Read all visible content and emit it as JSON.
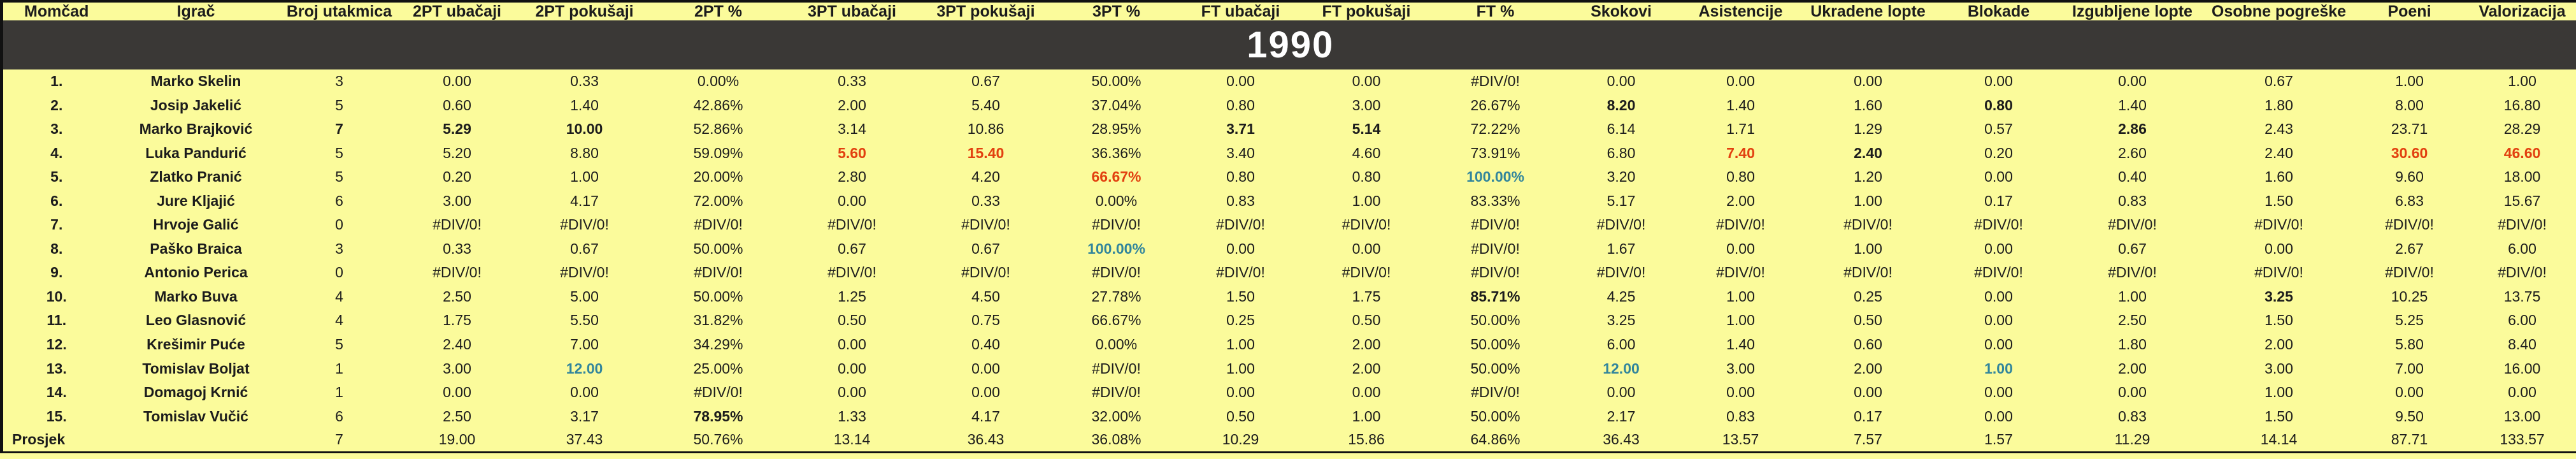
{
  "banner": {
    "year": "1990"
  },
  "colors": {
    "background": "#fbfb9b",
    "text": "#1c1c1c",
    "banner_bg": "#3a3836",
    "banner_text": "#ffffff",
    "max_red": "#e2400f",
    "max_teal": "#31859c"
  },
  "table": {
    "columns": [
      "Momčad",
      "Igrač",
      "Broj utakmica",
      "2PT ubačaji",
      "2PT pokušaji",
      "2PT %",
      "3PT ubačaji",
      "3PT pokušaji",
      "3PT %",
      "FT ubačaji",
      "FT pokušaji",
      "FT %",
      "Skokovi",
      "Asistencije",
      "Ukradene lopte",
      "Blokade",
      "Izgubljene lopte",
      "Osobne pogreške",
      "Poeni",
      "Valorizacija"
    ],
    "rows": [
      {
        "cells": [
          "1.",
          "Marko Skelin",
          "3",
          "0.00",
          "0.33",
          "0.00%",
          "0.33",
          "0.67",
          "50.00%",
          "0.00",
          "0.00",
          "#DIV/0!",
          "0.00",
          "0.00",
          "0.00",
          "0.00",
          "0.00",
          "0.67",
          "1.00",
          "1.00"
        ],
        "styles": {}
      },
      {
        "cells": [
          "2.",
          "Josip Jakelić",
          "5",
          "0.60",
          "1.40",
          "42.86%",
          "2.00",
          "5.40",
          "37.04%",
          "0.80",
          "3.00",
          "26.67%",
          "8.20",
          "1.40",
          "1.60",
          "0.80",
          "1.40",
          "1.80",
          "8.00",
          "16.80"
        ],
        "styles": {
          "12": "bold",
          "15": "bold"
        }
      },
      {
        "cells": [
          "3.",
          "Marko Brajković",
          "7",
          "5.29",
          "10.00",
          "52.86%",
          "3.14",
          "10.86",
          "28.95%",
          "3.71",
          "5.14",
          "72.22%",
          "6.14",
          "1.71",
          "1.29",
          "0.57",
          "2.86",
          "2.43",
          "23.71",
          "28.29"
        ],
        "styles": {
          "2": "bold",
          "3": "bold",
          "4": "bold",
          "9": "bold",
          "10": "bold",
          "16": "bold"
        }
      },
      {
        "cells": [
          "4.",
          "Luka Pandurić",
          "5",
          "5.20",
          "8.80",
          "59.09%",
          "5.60",
          "15.40",
          "36.36%",
          "3.40",
          "4.60",
          "73.91%",
          "6.80",
          "7.40",
          "2.40",
          "0.20",
          "2.60",
          "2.40",
          "30.60",
          "46.60"
        ],
        "styles": {
          "6": "red",
          "7": "red",
          "13": "red",
          "14": "bold",
          "18": "red",
          "19": "red"
        }
      },
      {
        "cells": [
          "5.",
          "Zlatko Pranić",
          "5",
          "0.20",
          "1.00",
          "20.00%",
          "2.80",
          "4.20",
          "66.67%",
          "0.80",
          "0.80",
          "100.00%",
          "3.20",
          "0.80",
          "1.20",
          "0.00",
          "0.40",
          "1.60",
          "9.60",
          "18.00"
        ],
        "styles": {
          "8": "red",
          "11": "teal"
        }
      },
      {
        "cells": [
          "6.",
          "Jure Kljajić",
          "6",
          "3.00",
          "4.17",
          "72.00%",
          "0.00",
          "0.33",
          "0.00%",
          "0.83",
          "1.00",
          "83.33%",
          "5.17",
          "2.00",
          "1.00",
          "0.17",
          "0.83",
          "1.50",
          "6.83",
          "15.67"
        ],
        "styles": {}
      },
      {
        "cells": [
          "7.",
          "Hrvoje Galić",
          "0",
          "#DIV/0!",
          "#DIV/0!",
          "#DIV/0!",
          "#DIV/0!",
          "#DIV/0!",
          "#DIV/0!",
          "#DIV/0!",
          "#DIV/0!",
          "#DIV/0!",
          "#DIV/0!",
          "#DIV/0!",
          "#DIV/0!",
          "#DIV/0!",
          "#DIV/0!",
          "#DIV/0!",
          "#DIV/0!",
          "#DIV/0!"
        ],
        "styles": {}
      },
      {
        "cells": [
          "8.",
          "Paško Braica",
          "3",
          "0.33",
          "0.67",
          "50.00%",
          "0.67",
          "0.67",
          "100.00%",
          "0.00",
          "0.00",
          "#DIV/0!",
          "1.67",
          "0.00",
          "1.00",
          "0.00",
          "0.67",
          "0.00",
          "2.67",
          "6.00"
        ],
        "styles": {
          "8": "teal"
        }
      },
      {
        "cells": [
          "9.",
          "Antonio Perica",
          "0",
          "#DIV/0!",
          "#DIV/0!",
          "#DIV/0!",
          "#DIV/0!",
          "#DIV/0!",
          "#DIV/0!",
          "#DIV/0!",
          "#DIV/0!",
          "#DIV/0!",
          "#DIV/0!",
          "#DIV/0!",
          "#DIV/0!",
          "#DIV/0!",
          "#DIV/0!",
          "#DIV/0!",
          "#DIV/0!",
          "#DIV/0!"
        ],
        "styles": {}
      },
      {
        "cells": [
          "10.",
          "Marko Buva",
          "4",
          "2.50",
          "5.00",
          "50.00%",
          "1.25",
          "4.50",
          "27.78%",
          "1.50",
          "1.75",
          "85.71%",
          "4.25",
          "1.00",
          "0.25",
          "0.00",
          "1.00",
          "3.25",
          "10.25",
          "13.75"
        ],
        "styles": {
          "11": "bold",
          "17": "bold"
        }
      },
      {
        "cells": [
          "11.",
          "Leo Glasnović",
          "4",
          "1.75",
          "5.50",
          "31.82%",
          "0.50",
          "0.75",
          "66.67%",
          "0.25",
          "0.50",
          "50.00%",
          "3.25",
          "1.00",
          "0.50",
          "0.00",
          "2.50",
          "1.50",
          "5.25",
          "6.00"
        ],
        "styles": {}
      },
      {
        "cells": [
          "12.",
          "Krešimir Puće",
          "5",
          "2.40",
          "7.00",
          "34.29%",
          "0.00",
          "0.40",
          "0.00%",
          "1.00",
          "2.00",
          "50.00%",
          "6.00",
          "1.40",
          "0.60",
          "0.00",
          "1.80",
          "2.00",
          "5.80",
          "8.40"
        ],
        "styles": {}
      },
      {
        "cells": [
          "13.",
          "Tomislav Boljat",
          "1",
          "3.00",
          "12.00",
          "25.00%",
          "0.00",
          "0.00",
          "#DIV/0!",
          "1.00",
          "2.00",
          "50.00%",
          "12.00",
          "3.00",
          "2.00",
          "1.00",
          "2.00",
          "3.00",
          "7.00",
          "16.00"
        ],
        "styles": {
          "4": "teal",
          "12": "teal",
          "15": "teal"
        }
      },
      {
        "cells": [
          "14.",
          "Domagoj Krnić",
          "1",
          "0.00",
          "0.00",
          "#DIV/0!",
          "0.00",
          "0.00",
          "#DIV/0!",
          "0.00",
          "0.00",
          "#DIV/0!",
          "0.00",
          "0.00",
          "0.00",
          "0.00",
          "0.00",
          "1.00",
          "0.00",
          "0.00"
        ],
        "styles": {}
      },
      {
        "cells": [
          "15.",
          "Tomislav Vučić",
          "6",
          "2.50",
          "3.17",
          "78.95%",
          "1.33",
          "4.17",
          "32.00%",
          "0.50",
          "1.00",
          "50.00%",
          "2.17",
          "0.83",
          "0.17",
          "0.00",
          "0.83",
          "1.50",
          "9.50",
          "13.00"
        ],
        "styles": {
          "5": "bold"
        }
      },
      {
        "cells": [
          "Prosjek",
          "",
          "7",
          "19.00",
          "37.43",
          "50.76%",
          "13.14",
          "36.43",
          "36.08%",
          "10.29",
          "15.86",
          "64.86%",
          "36.43",
          "13.57",
          "7.57",
          "1.57",
          "11.29",
          "14.14",
          "87.71",
          "133.57"
        ],
        "styles": {}
      }
    ]
  }
}
